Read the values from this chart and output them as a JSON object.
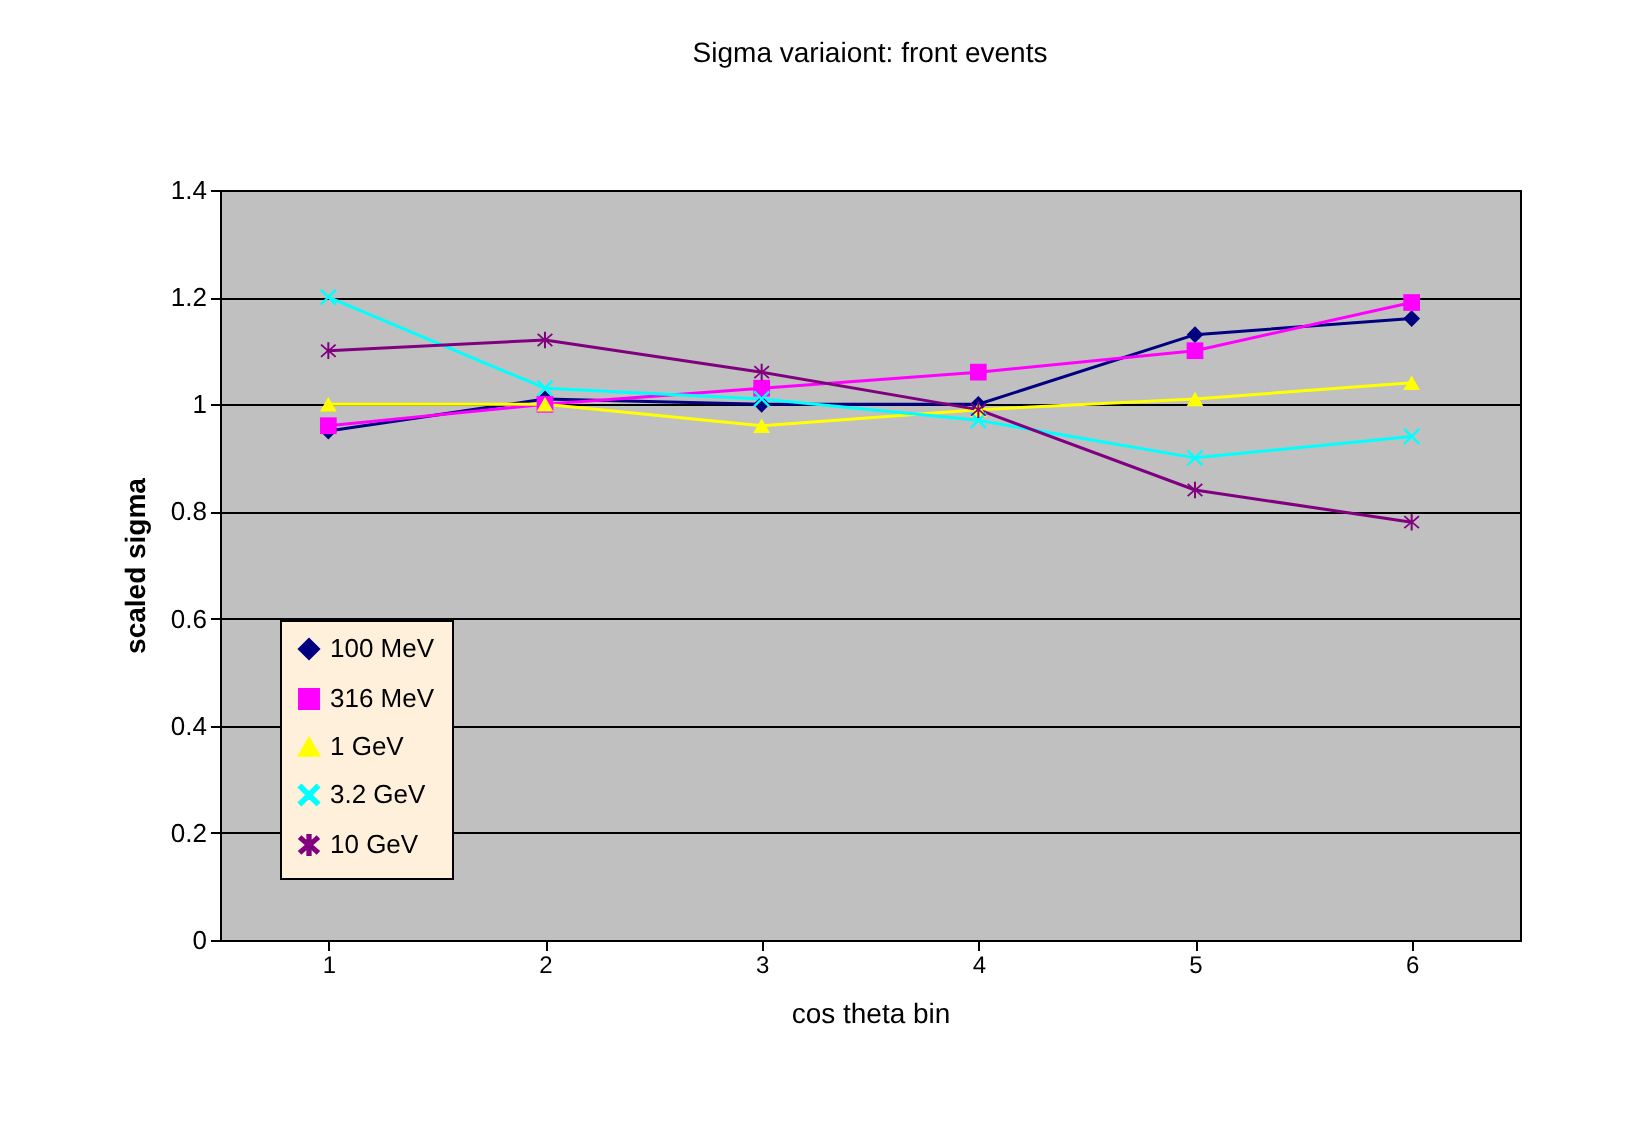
{
  "chart_data": {
    "type": "line",
    "title": "Sigma variaiont: front events",
    "xlabel": "cos theta bin",
    "ylabel": "scaled sigma",
    "categories": [
      "1",
      "2",
      "3",
      "4",
      "5",
      "6"
    ],
    "ylim": [
      0,
      1.4
    ],
    "yticks": [
      {
        "value": 0,
        "label": "0"
      },
      0.2,
      0.4,
      0.6,
      0.8,
      {
        "value": 1,
        "label": "1"
      },
      1.2,
      1.4
    ],
    "grid": "y",
    "legend": "bottom left",
    "series": [
      {
        "name": "100 MeV",
        "color": "#000080",
        "marker": "diamond",
        "values": [
          0.95,
          1.01,
          1.0,
          1.0,
          1.13,
          1.16
        ]
      },
      {
        "name": "316 MeV",
        "color": "#ff00ff",
        "marker": "square",
        "values": [
          0.96,
          1.0,
          1.03,
          1.06,
          1.1,
          1.19
        ]
      },
      {
        "name": "1 GeV",
        "color": "#ffff00",
        "marker": "triangle",
        "values": [
          1.0,
          1.0,
          0.96,
          0.99,
          1.01,
          1.04
        ]
      },
      {
        "name": "3.2 GeV",
        "color": "#00ffff",
        "marker": "cross",
        "values": [
          1.2,
          1.03,
          1.01,
          0.97,
          0.9,
          0.94
        ]
      },
      {
        "name": "10 GeV",
        "color": "#800080",
        "marker": "star",
        "values": [
          1.1,
          1.12,
          1.06,
          0.99,
          0.84,
          0.78
        ]
      }
    ]
  }
}
